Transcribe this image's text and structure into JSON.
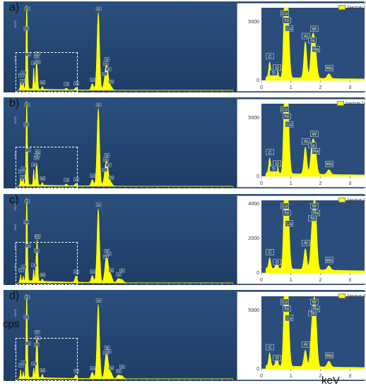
{
  "labels": {
    "ylabel": "cps",
    "xlabel": "keV"
  },
  "colors": {
    "spectrum": "#ffff00",
    "panel_bg": "#244775",
    "inset_bg": "#ffffff"
  },
  "chart_data": [
    {
      "type": "area",
      "panel": "a)",
      "legend": "Spectrum 2",
      "main": {
        "xlim": [
          0,
          20
        ],
        "ylim": [
          0,
          12000
        ],
        "yticks": [
          "5000",
          "10000"
        ]
      },
      "inset": {
        "xlim": [
          0,
          3.5
        ],
        "ylim": [
          0,
          6200
        ],
        "yticks": [
          "0",
          "5000"
        ],
        "xticks": [
          "0",
          "1",
          "2",
          "3"
        ]
      },
      "peaks": [
        {
          "x": 0.28,
          "y": 1300,
          "label": "C"
        },
        {
          "x": 0.52,
          "y": 950,
          "label": "O"
        },
        {
          "x": 0.78,
          "y": 5200,
          "label": "Co"
        },
        {
          "x": 0.85,
          "y": 12500,
          "label": "Ni"
        },
        {
          "x": 0.93,
          "y": 2600,
          "label": "Cu"
        },
        {
          "x": 1.49,
          "y": 3100,
          "label": "Al"
        },
        {
          "x": 1.71,
          "y": 2500,
          "label": "Ta"
        },
        {
          "x": 1.78,
          "y": 2000,
          "label": "W"
        },
        {
          "x": 1.84,
          "y": 1500,
          "label": "Re"
        },
        {
          "x": 2.29,
          "y": 400,
          "label": "Mo"
        },
        {
          "x": 0.4,
          "y": 500,
          "label": "Ti"
        },
        {
          "x": 7.48,
          "y": 11000,
          "label": "Ni"
        },
        {
          "x": 8.26,
          "y": 2700,
          "label": "Ni"
        },
        {
          "x": 6.93,
          "y": 900,
          "label": "Co"
        },
        {
          "x": 8.15,
          "y": 900,
          "label": "Ta"
        },
        {
          "x": 8.4,
          "y": 700,
          "label": "W"
        },
        {
          "x": 8.65,
          "y": 500,
          "label": "Re"
        },
        {
          "x": 5.41,
          "y": 350,
          "label": "Cr"
        },
        {
          "x": 4.51,
          "y": 250,
          "label": "Ti"
        },
        {
          "x": 8.04,
          "y": 450,
          "label": "Cu"
        }
      ],
      "main_tags": [
        "Ni",
        "Co",
        "Cu",
        "Al",
        "Ta",
        "W",
        "Re",
        "Mo",
        "Mo",
        "Ti",
        "Ti",
        "Cr",
        "Cr",
        "Co",
        "Ni",
        "Ni",
        "Re",
        "Ta",
        "Ta",
        "W",
        "Re",
        "W"
      ],
      "inset_tags": [
        "Co",
        "Cu",
        "Al",
        "Ta",
        "W",
        "Re",
        "Cr",
        "W",
        "Ti",
        "Ta",
        "Mo",
        "Mo"
      ]
    },
    {
      "type": "area",
      "panel": "b)",
      "legend": "Spectrum 13",
      "main": {
        "xlim": [
          0,
          20
        ],
        "ylim": [
          0,
          12000
        ],
        "yticks": [
          "5000",
          "10000"
        ]
      },
      "inset": {
        "xlim": [
          0,
          3.5
        ],
        "ylim": [
          0,
          6200
        ],
        "yticks": [
          "0",
          "5000"
        ],
        "xticks": [
          "0",
          "1",
          "2",
          "3"
        ]
      },
      "peaks": [
        {
          "x": 0.28,
          "y": 1300,
          "label": "C"
        },
        {
          "x": 0.52,
          "y": 950,
          "label": "O"
        },
        {
          "x": 0.78,
          "y": 5200,
          "label": "Co"
        },
        {
          "x": 0.85,
          "y": 12500,
          "label": "Ni"
        },
        {
          "x": 0.93,
          "y": 2600,
          "label": "Cu"
        },
        {
          "x": 1.49,
          "y": 2300,
          "label": "Al"
        },
        {
          "x": 1.71,
          "y": 1900,
          "label": "Ta"
        },
        {
          "x": 1.78,
          "y": 1600,
          "label": "W"
        },
        {
          "x": 1.84,
          "y": 1200,
          "label": "Re"
        },
        {
          "x": 2.29,
          "y": 400,
          "label": "Mo"
        },
        {
          "x": 0.4,
          "y": 500,
          "label": "Ti"
        },
        {
          "x": 7.48,
          "y": 11000,
          "label": "Ni"
        },
        {
          "x": 8.26,
          "y": 2700,
          "label": "Ni"
        },
        {
          "x": 6.93,
          "y": 900,
          "label": "Co"
        },
        {
          "x": 8.15,
          "y": 900,
          "label": "Ta"
        },
        {
          "x": 8.4,
          "y": 700,
          "label": "W"
        },
        {
          "x": 8.65,
          "y": 500,
          "label": "Re"
        },
        {
          "x": 5.41,
          "y": 350,
          "label": "Cr"
        },
        {
          "x": 4.51,
          "y": 250,
          "label": "Ti"
        },
        {
          "x": 8.04,
          "y": 450,
          "label": "Cu"
        }
      ],
      "main_tags": [
        "Ni",
        "Co",
        "Cu",
        "Al",
        "Ta",
        "W",
        "Re",
        "Mo",
        "Mo",
        "Ti",
        "Ti",
        "Cr",
        "Cr",
        "Co",
        "Ni",
        "Ni",
        "Re",
        "Ta",
        "Ta",
        "W",
        "Re",
        "W"
      ],
      "inset_tags": [
        "Co",
        "Cu",
        "Al",
        "Ta",
        "W",
        "Re",
        "Cr",
        "W",
        "Ti",
        "Ta",
        "Mo",
        "Mo"
      ]
    },
    {
      "type": "area",
      "panel": "c)",
      "legend": "Spectrum 1",
      "main": {
        "xlim": [
          0,
          20
        ],
        "ylim": [
          0,
          8500
        ],
        "yticks": [
          "2000",
          "4000",
          "6000",
          "8000"
        ]
      },
      "inset": {
        "xlim": [
          0,
          3.5
        ],
        "ylim": [
          0,
          4200
        ],
        "yticks": [
          "0",
          "2000",
          "4000"
        ],
        "xticks": [
          "0",
          "1",
          "2",
          "3"
        ]
      },
      "peaks": [
        {
          "x": 0.28,
          "y": 600,
          "label": "C"
        },
        {
          "x": 0.52,
          "y": 450,
          "label": "O"
        },
        {
          "x": 0.78,
          "y": 3500,
          "label": "Co"
        },
        {
          "x": 0.85,
          "y": 8800,
          "label": "Ni"
        },
        {
          "x": 0.93,
          "y": 1900,
          "label": "Cu"
        },
        {
          "x": 1.49,
          "y": 1200,
          "label": "Al"
        },
        {
          "x": 1.71,
          "y": 1700,
          "label": "Ta"
        },
        {
          "x": 1.78,
          "y": 2100,
          "label": "W"
        },
        {
          "x": 1.84,
          "y": 2500,
          "label": "Re"
        },
        {
          "x": 2.29,
          "y": 250,
          "label": "Mo"
        },
        {
          "x": 7.48,
          "y": 7400,
          "label": "Ni"
        },
        {
          "x": 8.26,
          "y": 1700,
          "label": "Ni"
        },
        {
          "x": 6.93,
          "y": 700,
          "label": "Co"
        },
        {
          "x": 8.15,
          "y": 900,
          "label": "Ta"
        },
        {
          "x": 8.4,
          "y": 800,
          "label": "W"
        },
        {
          "x": 8.65,
          "y": 700,
          "label": "Re"
        },
        {
          "x": 5.41,
          "y": 650,
          "label": "Cr"
        },
        {
          "x": 9.34,
          "y": 400,
          "label": "Ta"
        },
        {
          "x": 9.67,
          "y": 300,
          "label": "W"
        }
      ],
      "main_tags": [
        "Ni",
        "Co",
        "Cu",
        "Ta",
        "W",
        "Re",
        "Mo",
        "Mo",
        "Cr",
        "Co",
        "Ni",
        "Ni",
        "Ta",
        "W",
        "Re",
        "Ta",
        "W",
        "Re"
      ],
      "inset_tags": [
        "Co",
        "Cu",
        "Re",
        "W",
        "Ta",
        "Al",
        "Ta",
        "Mo",
        "Mo"
      ]
    },
    {
      "type": "area",
      "panel": "d)",
      "legend": "Spectrum 8",
      "main": {
        "xlim": [
          0,
          20
        ],
        "ylim": [
          0,
          12000
        ],
        "yticks": [
          "5000",
          "10000"
        ]
      },
      "inset": {
        "xlim": [
          0,
          3.5
        ],
        "ylim": [
          0,
          6200
        ],
        "yticks": [
          "0",
          "5000"
        ],
        "xticks": [
          "0",
          "1",
          "2",
          "3"
        ]
      },
      "peaks": [
        {
          "x": 0.28,
          "y": 1100,
          "label": "C"
        },
        {
          "x": 0.52,
          "y": 800,
          "label": "O"
        },
        {
          "x": 0.78,
          "y": 5200,
          "label": "Co"
        },
        {
          "x": 0.85,
          "y": 12500,
          "label": "Ni"
        },
        {
          "x": 0.93,
          "y": 2500,
          "label": "Cu"
        },
        {
          "x": 1.49,
          "y": 1400,
          "label": "Al"
        },
        {
          "x": 1.71,
          "y": 2700,
          "label": "Ta"
        },
        {
          "x": 1.78,
          "y": 3100,
          "label": "W"
        },
        {
          "x": 1.84,
          "y": 3400,
          "label": "Re"
        },
        {
          "x": 2.29,
          "y": 500,
          "label": "Mo"
        },
        {
          "x": 7.48,
          "y": 10500,
          "label": "Ni"
        },
        {
          "x": 8.26,
          "y": 2500,
          "label": "Ni"
        },
        {
          "x": 6.93,
          "y": 900,
          "label": "Co"
        },
        {
          "x": 8.15,
          "y": 1200,
          "label": "Ta"
        },
        {
          "x": 8.4,
          "y": 900,
          "label": "W"
        },
        {
          "x": 8.65,
          "y": 800,
          "label": "Re"
        },
        {
          "x": 5.41,
          "y": 500,
          "label": "Cr"
        },
        {
          "x": 9.34,
          "y": 500,
          "label": "Ta"
        },
        {
          "x": 9.67,
          "y": 400,
          "label": "W"
        }
      ],
      "main_tags": [
        "Ni",
        "Co",
        "Cu",
        "Ta",
        "W",
        "Re",
        "Mo",
        "Cr",
        "Co",
        "Ni",
        "Ni",
        "Ta",
        "W",
        "Re",
        "Ta",
        "W",
        "Re"
      ],
      "inset_tags": [
        "Co",
        "Cu",
        "Re",
        "W",
        "Ta",
        "Al",
        "Ta",
        "Mo",
        "Mo"
      ]
    }
  ]
}
